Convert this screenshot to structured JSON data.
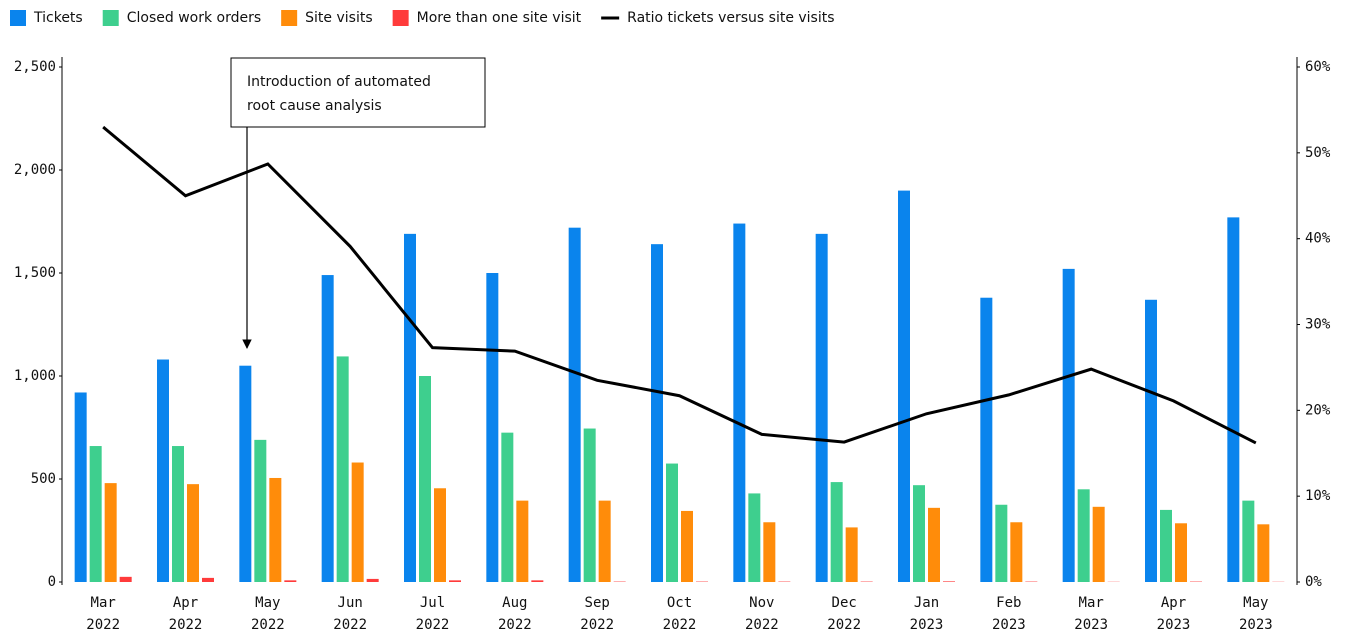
{
  "chart_data": {
    "type": "bar",
    "categories": [
      [
        "Mar",
        "2022"
      ],
      [
        "Apr",
        "2022"
      ],
      [
        "May",
        "2022"
      ],
      [
        "Jun",
        "2022"
      ],
      [
        "Jul",
        "2022"
      ],
      [
        "Aug",
        "2022"
      ],
      [
        "Sep",
        "2022"
      ],
      [
        "Oct",
        "2022"
      ],
      [
        "Nov",
        "2022"
      ],
      [
        "Dec",
        "2022"
      ],
      [
        "Jan",
        "2023"
      ],
      [
        "Feb",
        "2023"
      ],
      [
        "Mar",
        "2023"
      ],
      [
        "Apr",
        "2023"
      ],
      [
        "May",
        "2023"
      ]
    ],
    "series": [
      {
        "name": "Tickets",
        "color": "#0a84ed",
        "values": [
          920,
          1080,
          1050,
          1490,
          1690,
          1500,
          1720,
          1640,
          1740,
          1690,
          1900,
          1380,
          1520,
          1370,
          1770
        ]
      },
      {
        "name": "Closed work orders",
        "color": "#3ecf8e",
        "values": [
          660,
          660,
          690,
          1095,
          1000,
          725,
          745,
          575,
          430,
          485,
          470,
          375,
          450,
          350,
          395
        ]
      },
      {
        "name": "Site visits",
        "color": "#ff8c0a",
        "values": [
          480,
          475,
          505,
          580,
          455,
          395,
          395,
          345,
          290,
          265,
          360,
          290,
          365,
          285,
          280
        ]
      },
      {
        "name": "More than one site visit",
        "color": "#ff3b3b",
        "values": [
          25,
          20,
          8,
          15,
          8,
          8,
          2,
          2,
          2,
          2,
          3,
          2,
          1,
          2,
          1
        ]
      },
      {
        "name": "Ratio tickets versus site visits",
        "color": "#000000",
        "type": "line",
        "axis": "y2",
        "values": [
          53,
          45,
          48.7,
          39.1,
          27.3,
          26.9,
          23.5,
          21.7,
          17.2,
          16.3,
          19.6,
          21.8,
          24.8,
          21.1,
          16.2
        ]
      }
    ],
    "ylim": [
      0,
      2500
    ],
    "yticks": [
      0,
      500,
      {
        "value": 1000,
        "label": "1,000"
      },
      {
        "value": 1500,
        "label": "1,500"
      },
      {
        "value": 2000,
        "label": "2,000"
      },
      {
        "value": 2500,
        "label": "2,500"
      }
    ],
    "y2lim": [
      0,
      60
    ],
    "y2ticks": [
      {
        "value": 0,
        "label": "0%"
      },
      {
        "value": 10,
        "label": "10%"
      },
      {
        "value": 20,
        "label": "20%"
      },
      {
        "value": 30,
        "label": "30%"
      },
      {
        "value": 40,
        "label": "40%"
      },
      {
        "value": 50,
        "label": "50%"
      },
      {
        "value": 60,
        "label": "60%"
      }
    ],
    "annotation": {
      "lines": [
        "Introduction of automated",
        "root cause analysis"
      ]
    },
    "legend": "top-left",
    "grid": false
  }
}
